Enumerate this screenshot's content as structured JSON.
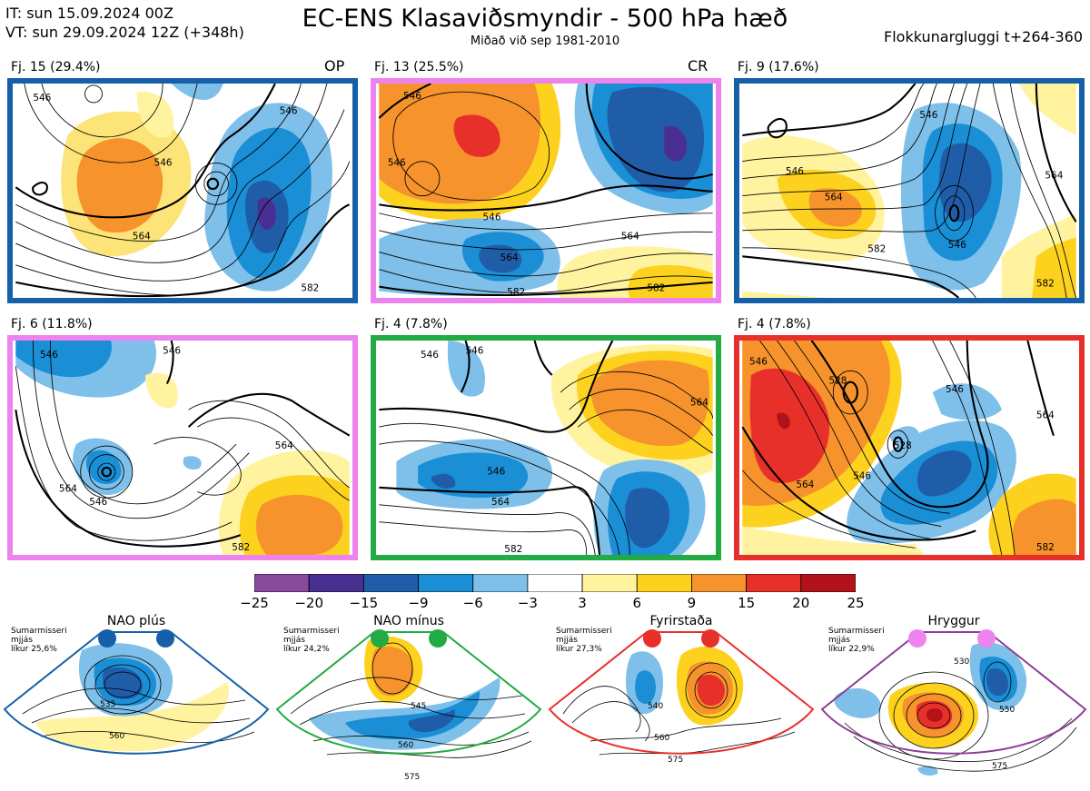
{
  "header": {
    "it_line": "IT: sun 15.09.2024 00Z",
    "vt_line": "VT: sun 29.09.2024 12Z  (+348h)",
    "title": "EC-ENS Klasaviðsmyndir - 500 hPa hæð",
    "subtitle": "Miðað við sep 1981-2010",
    "window": "Flokkunargluggi t+264-360"
  },
  "colors": {
    "blue_frame": "#1560a8",
    "pink_frame": "#ee82ee",
    "green_frame": "#22aa44",
    "red_frame": "#e8302a"
  },
  "panels": [
    {
      "label": "Fj. 15 (29.4%)",
      "tag": "OP",
      "frame": "blue",
      "contour_labels": [
        "546",
        "546",
        "546",
        "564",
        "582"
      ]
    },
    {
      "label": "Fj. 13 (25.5%)",
      "tag": "CR",
      "frame": "pink",
      "contour_labels": [
        "546",
        "546",
        "546",
        "564",
        "564",
        "582",
        "582"
      ]
    },
    {
      "label": "Fj. 9 (17.6%)",
      "tag": "",
      "frame": "blue",
      "contour_labels": [
        "546",
        "546",
        "546",
        "564",
        "564",
        "582",
        "582"
      ]
    },
    {
      "label": "Fj. 6 (11.8%)",
      "tag": "",
      "frame": "pink",
      "contour_labels": [
        "546",
        "546",
        "564",
        "546",
        "564",
        "582"
      ]
    },
    {
      "label": "Fj. 4 (7.8%)",
      "tag": "",
      "frame": "green",
      "contour_labels": [
        "546",
        "546",
        "564",
        "546",
        "564",
        "582"
      ]
    },
    {
      "label": "Fj. 4 (7.8%)",
      "tag": "",
      "frame": "red",
      "contour_labels": [
        "546",
        "528",
        "546",
        "564",
        "528",
        "546",
        "564",
        "582"
      ]
    }
  ],
  "colorbar": {
    "ticks": [
      "−25",
      "−20",
      "−15",
      "−9",
      "−6",
      "−3",
      "3",
      "6",
      "9",
      "15",
      "20",
      "25"
    ],
    "colors": [
      "#8a4a9c",
      "#4a2f93",
      "#1f5da8",
      "#1a8fd6",
      "#7ec0ea",
      "#ffffff",
      "#fff3a0",
      "#fcd21e",
      "#f6932c",
      "#e8302a",
      "#b3121a"
    ]
  },
  "regimes": [
    {
      "title": "NAO plús",
      "info": [
        "Sumarmisseri",
        "mjjás",
        "líkur 25,6%"
      ],
      "frame": "#1560a8",
      "dot": "#1560a8",
      "labels": [
        "535",
        "560"
      ]
    },
    {
      "title": "NAO mínus",
      "info": [
        "Sumarmisseri",
        "mjjás",
        "líkur 24,2%"
      ],
      "frame": "#22aa44",
      "dot": "#22aa44",
      "labels": [
        "545",
        "560",
        "575"
      ]
    },
    {
      "title": "Fyrirstaða",
      "info": [
        "Sumarmisseri",
        "mjjás",
        "líkur 27,3%"
      ],
      "frame": "#e8302a",
      "dot": "#e8302a",
      "labels": [
        "540",
        "560",
        "575"
      ]
    },
    {
      "title": "Hryggur",
      "info": [
        "Sumarmisseri",
        "mjjás",
        "líkur 22,9%"
      ],
      "frame": "#8e3d96",
      "dot": "#ee82ee",
      "labels": [
        "530",
        "550",
        "575"
      ]
    }
  ]
}
